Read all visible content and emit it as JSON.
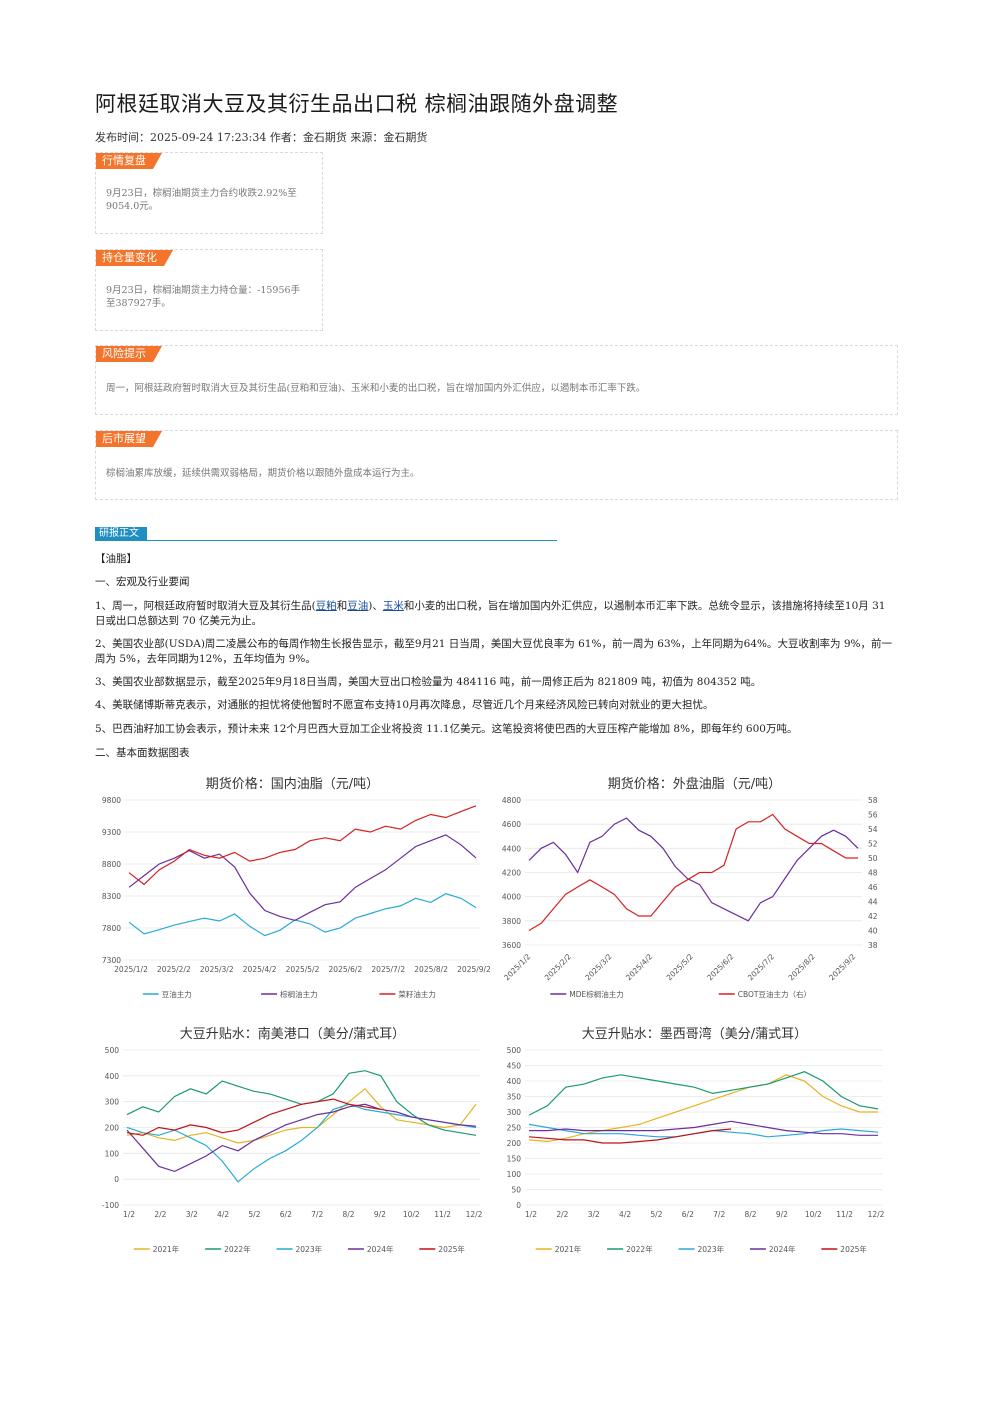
{
  "title": "阿根廷取消大豆及其衍生品出口税 棕榈油跟随外盘调整",
  "meta": "发布时间：2025-09-24 17:23:34 作者：金石期货 来源：金石期货",
  "boxes": {
    "review": {
      "tag": "行情复盘",
      "text": "9月23日，棕榈油期货主力合约收跌2.92%至9054.0元。"
    },
    "position": {
      "tag": "持仓量变化",
      "text": "9月23日，棕榈油期货主力持仓量：-15956手至387927手。"
    },
    "risk": {
      "tag": "风险提示",
      "text": "周一，阿根廷政府暂时取消大豆及其衍生品(豆粕和豆油)、玉米和小麦的出口税，旨在增加国内外汇供应，以遏制本币汇率下跌。"
    },
    "outlook": {
      "tag": "后市展望",
      "text": "棕榈油累库放缓，延续供需双弱格局，期货价格以跟随外盘成本运行为主。"
    }
  },
  "report_tag": "研报正文",
  "section_label": "【油脂】",
  "h1": "一、宏观及行业要闻",
  "p1": {
    "a": "1、周一，阿根廷政府暂时取消大豆及其衍生品(",
    "l1": "豆粕",
    "b": "和",
    "l2": "豆油",
    "c": ")、",
    "l3": "玉米",
    "d": "和小麦的出口税，旨在增加国内外汇供应，以遏制本币汇率下跌。总统令显示，该措施将持续至10月 31 日或出口总额达到 70 亿美元为止。"
  },
  "p2": "2、美国农业部(USDA)周二凌晨公布的每周作物生长报告显示，截至9月21 日当周，美国大豆优良率为 61%，前一周为 63%，上年同期为64%。大豆收割率为 9%，前一周为 5%，去年同期为12%，五年均值为 9%。",
  "p3": "3、美国农业部数据显示，截至2025年9月18日当周，美国大豆出口检验量为 484116 吨，前一周修正后为 821809 吨，初值为 804352 吨。",
  "p4": "4、美联储博斯蒂克表示，对通胀的担忧将使他暂时不愿宣布支持10月再次降息，尽管近几个月来经济风险已转向对就业的更大担忧。",
  "p5": "5、巴西油籽加工协会表示，预计未来 12个月巴西大豆加工企业将投资 11.1亿美元。这笔投资将使巴西的大豆压榨产能增加 8%，即每年约 600万吨。",
  "h2": "二、基本面数据图表",
  "charts": [
    {
      "title": "期货价格：国内油脂（元/吨）",
      "type": "line",
      "y_ticks": [
        "9800",
        "9300",
        "8800",
        "8300",
        "7800",
        "7300"
      ],
      "x_ticks": [
        "2025/1/2",
        "2025/2/2",
        "2025/3/2",
        "2025/4/2",
        "2025/5/2",
        "2025/6/2",
        "2025/7/2",
        "2025/8/2",
        "2025/9/2"
      ],
      "ylim": [
        7300,
        10050
      ],
      "series": [
        {
          "name": "豆油主力",
          "color": "#29a9d8",
          "values": [
            7950,
            7750,
            7820,
            7900,
            7960,
            8020,
            7970,
            8090,
            7880,
            7720,
            7810,
            7990,
            7920,
            7780,
            7850,
            8020,
            8100,
            8180,
            8230,
            8360,
            8290,
            8440,
            8360,
            8200
          ]
        },
        {
          "name": "棕榈油主力",
          "color": "#6a2e9e",
          "values": [
            8550,
            8750,
            8950,
            9050,
            9180,
            9050,
            9120,
            8900,
            8450,
            8150,
            8050,
            7980,
            8120,
            8250,
            8300,
            8550,
            8700,
            8850,
            9050,
            9250,
            9350,
            9450,
            9280,
            9054
          ]
        },
        {
          "name": "菜籽油主力",
          "color": "#d62020",
          "values": [
            8800,
            8600,
            8850,
            9000,
            9200,
            9100,
            9050,
            9150,
            9000,
            9050,
            9150,
            9200,
            9350,
            9400,
            9350,
            9550,
            9500,
            9600,
            9550,
            9700,
            9800,
            9750,
            9850,
            9950
          ]
        }
      ]
    },
    {
      "title": "期货价格：外盘油脂（元/吨）",
      "type": "line",
      "y_ticks": [
        "4800",
        "4600",
        "4400",
        "4200",
        "4000",
        "3800",
        "3600"
      ],
      "y2_ticks": [
        "58",
        "56",
        "54",
        "52",
        "50",
        "48",
        "46",
        "44",
        "42",
        "40",
        "38"
      ],
      "x_ticks": [
        "2025/1/2",
        "2025/2/2",
        "2025/3/2",
        "2025/4/2",
        "2025/5/2",
        "2025/6/2",
        "2025/7/2",
        "2025/8/2",
        "2025/9/2"
      ],
      "series": [
        {
          "name": "MDE棕榈油主力",
          "color": "#6a2e9e",
          "values": [
            4300,
            4400,
            4450,
            4350,
            4200,
            4450,
            4500,
            4600,
            4650,
            4550,
            4500,
            4400,
            4250,
            4150,
            4100,
            3950,
            3900,
            3850,
            3800,
            3950,
            4000,
            4150,
            4300,
            4400,
            4500,
            4550,
            4500,
            4400
          ]
        },
        {
          "name": "CBOT豆油主力（右）",
          "color": "#d62020",
          "values": [
            40,
            41,
            43,
            45,
            46,
            47,
            46,
            45,
            43,
            42,
            42,
            44,
            46,
            47,
            48,
            48,
            49,
            54,
            55,
            55,
            56,
            54,
            53,
            52,
            52,
            51,
            50,
            50
          ]
        }
      ],
      "ylim": [
        3600,
        4800
      ],
      "y2lim": [
        38,
        58
      ]
    },
    {
      "title": "大豆升贴水：南美港口（美分/蒲式耳）",
      "type": "line",
      "y_ticks": [
        "500",
        "400",
        "300",
        "200",
        "100",
        "0",
        "-100"
      ],
      "x_ticks": [
        "1/2",
        "2/2",
        "3/2",
        "4/2",
        "5/2",
        "6/2",
        "7/2",
        "8/2",
        "9/2",
        "10/2",
        "11/2",
        "12/2"
      ],
      "ylim": [
        -100,
        500
      ],
      "series": [
        {
          "name": "2021年",
          "color": "#e6b422",
          "values": [
            170,
            180,
            160,
            150,
            170,
            180,
            160,
            140,
            150,
            170,
            190,
            200,
            200,
            250,
            300,
            350,
            280,
            230,
            220,
            210,
            200,
            210,
            290
          ]
        },
        {
          "name": "2022年",
          "color": "#1b9a6e",
          "values": [
            250,
            280,
            260,
            320,
            350,
            330,
            380,
            360,
            340,
            330,
            310,
            290,
            300,
            330,
            410,
            420,
            400,
            300,
            250,
            210,
            190,
            180,
            170
          ]
        },
        {
          "name": "2023年",
          "color": "#29a9d8",
          "values": [
            200,
            180,
            170,
            190,
            160,
            130,
            70,
            -10,
            40,
            80,
            110,
            150,
            200,
            270,
            290,
            270,
            260,
            250,
            240,
            230,
            220,
            210,
            200
          ]
        },
        {
          "name": "2024年",
          "color": "#6a2e9e",
          "values": [
            190,
            120,
            50,
            30,
            60,
            90,
            130,
            110,
            150,
            180,
            210,
            230,
            250,
            260,
            280,
            290,
            270,
            260,
            240,
            230,
            220,
            210,
            205
          ]
        },
        {
          "name": "2025年",
          "color": "#c0111a",
          "values": [
            180,
            170,
            200,
            190,
            210,
            200,
            180,
            190,
            220,
            250,
            270,
            290,
            300,
            310,
            290,
            280,
            270
          ]
        }
      ]
    },
    {
      "title": "大豆升贴水：墨西哥湾（美分/蒲式耳）",
      "type": "line",
      "y_ticks": [
        "500",
        "450",
        "400",
        "350",
        "300",
        "250",
        "200",
        "150",
        "100",
        "50",
        "0"
      ],
      "x_ticks": [
        "1/2",
        "2/2",
        "3/2",
        "4/2",
        "5/2",
        "6/2",
        "7/2",
        "8/2",
        "9/2",
        "10/2",
        "11/2",
        "12/2"
      ],
      "ylim": [
        0,
        500
      ],
      "series": [
        {
          "name": "2021年",
          "color": "#e6b422",
          "values": [
            210,
            205,
            215,
            230,
            240,
            250,
            260,
            280,
            300,
            320,
            340,
            360,
            380,
            390,
            420,
            400,
            350,
            320,
            300,
            300
          ]
        },
        {
          "name": "2022年",
          "color": "#1b9a6e",
          "values": [
            290,
            320,
            380,
            390,
            410,
            420,
            410,
            400,
            390,
            380,
            360,
            370,
            380,
            390,
            410,
            430,
            400,
            350,
            320,
            310
          ]
        },
        {
          "name": "2023年",
          "color": "#29a9d8",
          "values": [
            260,
            250,
            240,
            230,
            230,
            230,
            225,
            220,
            220,
            230,
            240,
            235,
            230,
            220,
            225,
            230,
            240,
            245,
            240,
            235
          ]
        },
        {
          "name": "2024年",
          "color": "#6a2e9e",
          "values": [
            240,
            240,
            245,
            240,
            240,
            240,
            240,
            240,
            245,
            250,
            260,
            270,
            260,
            250,
            240,
            235,
            230,
            230,
            225,
            225
          ]
        },
        {
          "name": "2025年",
          "color": "#c0111a",
          "values": [
            220,
            215,
            210,
            210,
            200,
            200,
            205,
            210,
            220,
            230,
            240,
            245
          ]
        }
      ]
    }
  ]
}
